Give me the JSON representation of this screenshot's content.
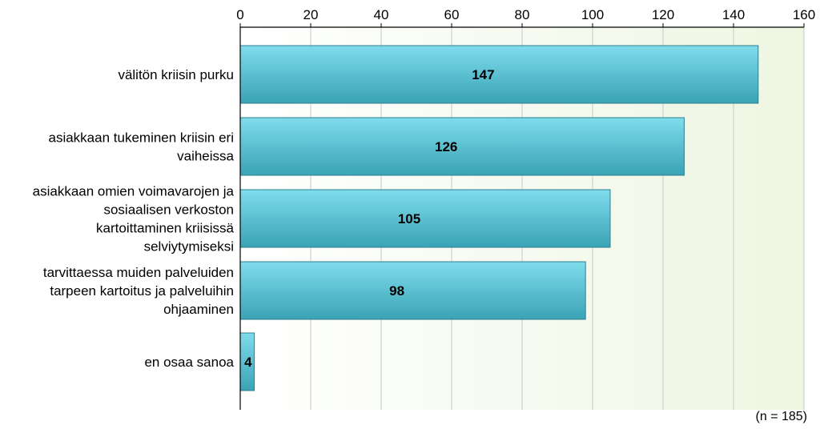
{
  "chart_data": {
    "type": "bar",
    "orientation": "horizontal",
    "categories": [
      "välitön kriisin purku",
      "asiakkaan tukeminen kriisin eri vaiheissa",
      "asiakkaan omien voimavarojen ja sosiaalisen verkoston kartoittaminen kriisissä selviytymiseksi",
      "tarvittaessa muiden palveluiden tarpeen kartoitus ja palveluihin ohjaaminen",
      "en osaa sanoa"
    ],
    "category_lines": [
      [
        "välitön kriisin purku"
      ],
      [
        "asiakkaan tukeminen kriisin eri",
        "vaiheissa"
      ],
      [
        "asiakkaan omien voimavarojen ja",
        "sosiaalisen verkoston",
        "kartoittaminen kriisissä",
        "selviytymiseksi"
      ],
      [
        "tarvittaessa muiden palveluiden",
        "tarpeen kartoitus ja palveluihin",
        "ohjaaminen"
      ],
      [
        "en osaa sanoa"
      ]
    ],
    "values": [
      147,
      126,
      105,
      98,
      4
    ],
    "data_labels": [
      "147",
      "126",
      "105",
      "98",
      "4"
    ],
    "xlim": [
      0,
      160
    ],
    "xticks": [
      0,
      20,
      40,
      60,
      80,
      100,
      120,
      140,
      160
    ],
    "axis_position": "top",
    "grid": true,
    "colors": {
      "bar_light": "#7fdcec",
      "bar_dark": "#3aa3b6",
      "bar_edge": "#2f7f8e",
      "plot_bg_left": "#ffffff",
      "plot_bg_right": "#eef6e2",
      "grid": "#c8c8c8",
      "axis": "#000000"
    }
  },
  "footer": {
    "note": "(n = 185)"
  }
}
